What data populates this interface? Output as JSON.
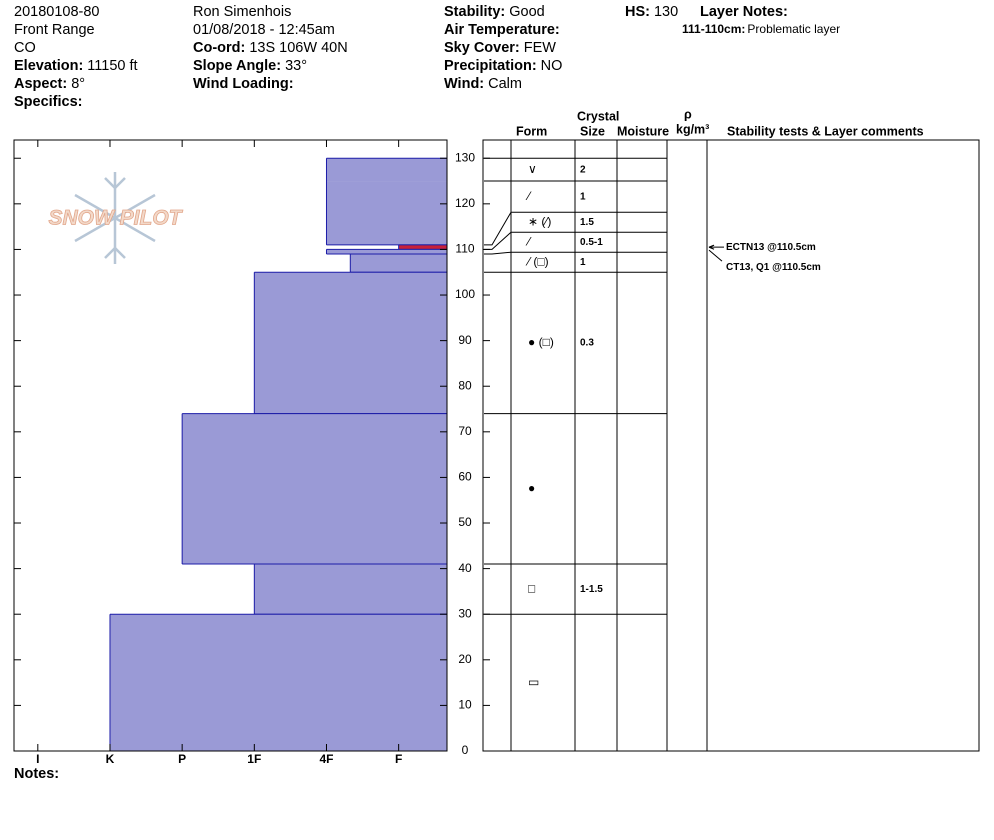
{
  "header": {
    "columns": [
      [
        {
          "text": "20180108-80"
        },
        {
          "text": "Front Range"
        },
        {
          "text": "CO"
        },
        {
          "label": "Elevation:",
          "value": "11150 ft"
        },
        {
          "label": "Aspect:",
          "value": "8°"
        },
        {
          "label": "Specifics:"
        }
      ],
      [
        {
          "text": "Ron Simenhois"
        },
        {
          "text": "01/08/2018 - 12:45am"
        },
        {
          "label": "Co-ord:",
          "value": "13S 106W 40N"
        },
        {
          "label": "Slope Angle:",
          "value": "33°"
        },
        {
          "label": "Wind Loading:"
        }
      ],
      [
        {
          "label": "Stability:",
          "value": "Good"
        },
        {
          "label": "Air Temperature:"
        },
        {
          "label": "Sky Cover:",
          "value": "FEW"
        },
        {
          "label": "Precipitation:",
          "value": "NO"
        },
        {
          "label": "Wind:",
          "value": "Calm"
        }
      ],
      [
        {
          "label": "HS:",
          "value": 130
        }
      ]
    ],
    "layer_notes": {
      "title": "Layer Notes:",
      "items": [
        {
          "label": "111-110cm:",
          "text": "Problematic layer"
        }
      ]
    }
  },
  "logo": "SNOW PILOT",
  "chart_data": {
    "type": "snow-profile",
    "xlim": [
      -0.33,
      5.67
    ],
    "xticks": [
      {
        "value": 0,
        "label": "I"
      },
      {
        "value": 1,
        "label": "K"
      },
      {
        "value": 2,
        "label": "P"
      },
      {
        "value": 3,
        "label": "1F"
      },
      {
        "value": 4,
        "label": "4F"
      },
      {
        "value": 5,
        "label": "F"
      }
    ],
    "ylim": [
      0,
      134
    ],
    "yticks": [
      0,
      10,
      20,
      30,
      40,
      50,
      60,
      70,
      80,
      90,
      100,
      110,
      120,
      130
    ],
    "color": "#9a9ad6",
    "edge_color": "#1c1ca8",
    "layers": [
      {
        "top": 130,
        "bottom": 125,
        "hardness": 4,
        "form": "∨",
        "size": "2"
      },
      {
        "top": 125,
        "bottom": 111,
        "hardness": 4,
        "form": "⁄",
        "size": "1"
      },
      {
        "top": 111,
        "bottom": 110,
        "hardness": 5,
        "form": "∗ (⁄)",
        "size": "1.5",
        "color": "#c8203a"
      },
      {
        "top": 110,
        "bottom": 109,
        "hardness": 4,
        "form": "⁄",
        "size": "0.5-1"
      },
      {
        "top": 109,
        "bottom": 105,
        "hardness": 4.33,
        "form": "⁄ (□)",
        "size": "1"
      },
      {
        "top": 105,
        "bottom": 74,
        "hardness": 3,
        "form": "● (□)",
        "size": "0.3"
      },
      {
        "top": 74,
        "bottom": 41,
        "hardness": 2,
        "form": "●"
      },
      {
        "top": 41,
        "bottom": 30,
        "hardness": 3,
        "form": "□",
        "size": "1-1.5"
      },
      {
        "top": 30,
        "bottom": 0,
        "hardness": 1,
        "form": "▭"
      }
    ]
  },
  "table": {
    "crystal": "Crystal",
    "form": "Form",
    "size": "Size",
    "moisture": "Moisture",
    "density_symbol": "ρ",
    "density_unit": "kg/m³",
    "comments": "Stability tests & Layer comments"
  },
  "tests": [
    {
      "text": "ECTN13 @110.5cm",
      "height": 110.5
    },
    {
      "text": "CT13, Q1 @110.5cm",
      "height": 110.5
    }
  ],
  "notes_label": "Notes:"
}
